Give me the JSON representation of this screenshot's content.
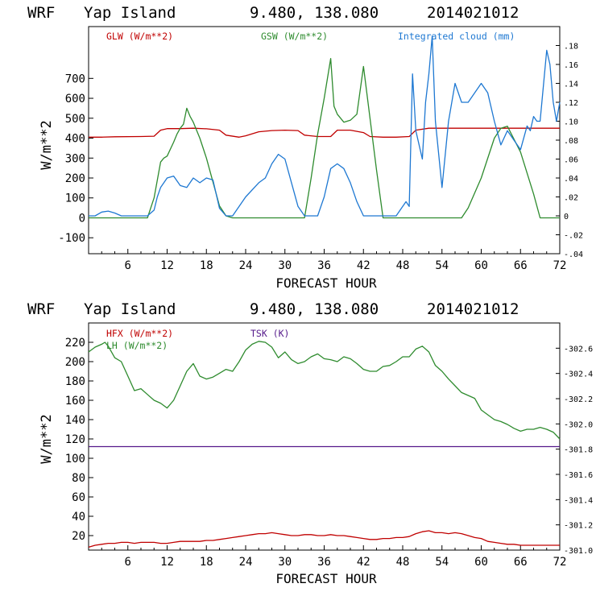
{
  "colors": {
    "glw": "#c00000",
    "gsw": "#2e8b2e",
    "cloud": "#1e78d2",
    "hfx": "#c00000",
    "lh": "#2e8b2e",
    "tsk": "#551a8b",
    "frame": "#000000"
  },
  "chart_data": [
    {
      "type": "line",
      "title": {
        "model": "WRF",
        "location": "Yap Island",
        "coords": "9.480, 138.080",
        "date": "2014021012"
      },
      "xlabel": "FORECAST HOUR",
      "ylabel": "W/m**2",
      "xlim": [
        0,
        72
      ],
      "xticks": [
        "6",
        "12",
        "18",
        "24",
        "30",
        "36",
        "42",
        "48",
        "54",
        "60",
        "66",
        "72"
      ],
      "ylim": [
        -180,
        960
      ],
      "yticks": [
        "-100",
        "0",
        "100",
        "200",
        "300",
        "400",
        "500",
        "600",
        "700"
      ],
      "y2lim": [
        -0.04,
        0.2
      ],
      "y2ticks": [
        "-.04",
        "-.02",
        "0",
        ".02",
        ".04",
        ".06",
        ".08",
        ".10",
        ".12",
        ".14",
        ".16",
        ".18"
      ],
      "legend": [
        "GLW (W/m**2)",
        "GSW (W/m**2)",
        "Integrated cloud (mm)"
      ],
      "series": [
        {
          "name": "GLW (W/m**2)",
          "axis": "left",
          "x": [
            0,
            2,
            4,
            8,
            10,
            11,
            12,
            14,
            16,
            18,
            20,
            21,
            23,
            24,
            26,
            28,
            30,
            32,
            33,
            35,
            37,
            38,
            40,
            42,
            43,
            45,
            47,
            49,
            50,
            52,
            56,
            60,
            64,
            68,
            72
          ],
          "y": [
            405,
            405,
            407,
            408,
            410,
            440,
            448,
            448,
            450,
            447,
            440,
            415,
            405,
            412,
            432,
            438,
            440,
            438,
            415,
            408,
            408,
            440,
            440,
            428,
            408,
            405,
            405,
            408,
            440,
            450,
            450,
            450,
            450,
            450,
            450
          ]
        },
        {
          "name": "GSW (W/m**2)",
          "axis": "left",
          "x": [
            0,
            9,
            10,
            11,
            11.5,
            12,
            13,
            13.5,
            14,
            14.5,
            15,
            15.5,
            16,
            17,
            18,
            19,
            20,
            21,
            22,
            33,
            34,
            35,
            36,
            37,
            37.5,
            38,
            39,
            40,
            41,
            42,
            43,
            44,
            45,
            57,
            58,
            60,
            62,
            63,
            64,
            66,
            68,
            69,
            72
          ],
          "y": [
            0,
            0,
            100,
            280,
            300,
            310,
            380,
            420,
            450,
            470,
            550,
            510,
            480,
            400,
            300,
            180,
            60,
            10,
            0,
            0,
            200,
            420,
            600,
            800,
            560,
            520,
            480,
            490,
            520,
            760,
            500,
            240,
            0,
            0,
            50,
            200,
            400,
            450,
            460,
            330,
            120,
            0,
            0
          ]
        },
        {
          "name": "Integrated cloud (mm)",
          "axis": "right",
          "x": [
            0,
            1,
            2,
            3,
            4,
            5,
            9,
            10,
            10.5,
            11,
            12,
            13,
            14,
            15,
            16,
            17,
            18,
            19,
            20,
            21,
            22,
            24,
            26,
            27,
            28,
            29,
            30,
            31,
            32,
            33,
            34,
            35,
            36,
            37,
            38,
            39,
            40,
            41,
            42,
            43,
            44,
            45,
            47,
            48,
            48.5,
            49,
            49.5,
            50,
            51,
            51.5,
            52,
            52.5,
            53,
            54,
            55,
            56,
            57,
            58,
            59,
            60,
            61,
            62,
            63,
            64,
            65,
            66,
            67,
            67.5,
            68,
            68.5,
            69,
            70,
            70.5,
            71,
            71.5,
            72
          ],
          "y": [
            0,
            0,
            0.004,
            0.005,
            0.003,
            0,
            0,
            0.006,
            0.02,
            0.03,
            0.04,
            0.042,
            0.032,
            0.03,
            0.04,
            0.035,
            0.04,
            0.038,
            0.008,
            0,
            0,
            0.02,
            0.035,
            0.04,
            0.055,
            0.065,
            0.06,
            0.035,
            0.01,
            0,
            0,
            0,
            0.02,
            0.05,
            0.055,
            0.05,
            0.035,
            0.015,
            0,
            0,
            0,
            0,
            0,
            0.01,
            0.015,
            0.01,
            0.15,
            0.09,
            0.06,
            0.12,
            0.15,
            0.19,
            0.1,
            0.03,
            0.1,
            0.14,
            0.12,
            0.12,
            0.13,
            0.14,
            0.13,
            0.1,
            0.075,
            0.09,
            0.08,
            0.07,
            0.095,
            0.09,
            0.105,
            0.1,
            0.1,
            0.175,
            0.16,
            0.12,
            0.1,
            0.12
          ]
        }
      ]
    },
    {
      "type": "line",
      "title": {
        "model": "WRF",
        "location": "Yap Island",
        "coords": "9.480, 138.080",
        "date": "2014021012"
      },
      "xlabel": "FORECAST HOUR",
      "ylabel": "W/m**2",
      "xlim": [
        0,
        72
      ],
      "xticks": [
        "6",
        "12",
        "18",
        "24",
        "30",
        "36",
        "42",
        "48",
        "54",
        "60",
        "66",
        "72"
      ],
      "ylim": [
        5,
        240
      ],
      "yticks": [
        "20",
        "40",
        "60",
        "80",
        "100",
        "120",
        "140",
        "160",
        "180",
        "200",
        "220"
      ],
      "y2lim": [
        301.0,
        302.8
      ],
      "y2ticks": [
        "-301.0",
        "-301.2",
        "-301.4",
        "-301.6",
        "-301.8",
        "-302.0",
        "-302.2",
        "-302.4",
        "-302.6"
      ],
      "legend": [
        "HFX (W/m**2)",
        "LH  (W/m**2)",
        "TSK (K)"
      ],
      "series": [
        {
          "name": "HFX (W/m**2)",
          "axis": "left",
          "x": [
            0,
            1,
            2,
            3,
            4,
            5,
            6,
            7,
            8,
            9,
            10,
            11,
            12,
            13,
            14,
            15,
            16,
            17,
            18,
            19,
            20,
            21,
            22,
            23,
            24,
            25,
            26,
            27,
            28,
            29,
            30,
            31,
            32,
            33,
            34,
            35,
            36,
            37,
            38,
            39,
            40,
            41,
            42,
            43,
            44,
            45,
            46,
            47,
            48,
            49,
            50,
            51,
            52,
            53,
            54,
            55,
            56,
            57,
            58,
            59,
            60,
            61,
            62,
            63,
            64,
            65,
            66,
            67,
            68,
            69,
            70,
            71,
            72
          ],
          "y": [
            8,
            10,
            11,
            12,
            12,
            13,
            13,
            12,
            13,
            13,
            13,
            12,
            12,
            13,
            14,
            14,
            14,
            14,
            15,
            15,
            16,
            17,
            18,
            19,
            20,
            21,
            22,
            22,
            23,
            22,
            21,
            20,
            20,
            21,
            21,
            20,
            20,
            21,
            20,
            20,
            19,
            18,
            17,
            16,
            16,
            17,
            17,
            18,
            18,
            19,
            22,
            24,
            25,
            23,
            23,
            22,
            23,
            22,
            20,
            18,
            17,
            14,
            13,
            12,
            11,
            11,
            10,
            10,
            10,
            10,
            10,
            10,
            10
          ]
        },
        {
          "name": "LH  (W/m**2)",
          "axis": "left",
          "x": [
            0,
            1,
            2,
            2.5,
            3,
            4,
            5,
            6,
            7,
            8,
            9,
            10,
            11,
            12,
            13,
            14,
            15,
            16,
            17,
            18,
            19,
            20,
            21,
            22,
            23,
            24,
            25,
            26,
            27,
            28,
            29,
            30,
            31,
            32,
            33,
            34,
            35,
            36,
            37,
            38,
            39,
            40,
            41,
            42,
            43,
            44,
            45,
            46,
            47,
            48,
            49,
            50,
            51,
            52,
            53,
            54,
            55,
            56,
            57,
            58,
            59,
            60,
            61,
            62,
            63,
            64,
            65,
            66,
            67,
            68,
            69,
            70,
            71,
            72
          ],
          "y": [
            210,
            215,
            218,
            220,
            216,
            204,
            200,
            185,
            170,
            172,
            166,
            160,
            157,
            152,
            160,
            175,
            190,
            198,
            185,
            182,
            184,
            188,
            192,
            190,
            200,
            212,
            218,
            221,
            220,
            215,
            204,
            210,
            202,
            198,
            200,
            205,
            208,
            203,
            202,
            200,
            205,
            203,
            198,
            192,
            190,
            190,
            195,
            196,
            200,
            205,
            205,
            213,
            216,
            210,
            196,
            190,
            182,
            175,
            168,
            165,
            162,
            150,
            145,
            140,
            138,
            135,
            131,
            128,
            130,
            130,
            132,
            130,
            127,
            120
          ]
        },
        {
          "name": "TSK (K)",
          "axis": "right",
          "x": [
            0,
            12,
            24,
            36,
            48,
            60,
            72
          ],
          "y": [
            301.82,
            301.82,
            301.82,
            301.82,
            301.82,
            301.82,
            301.82
          ]
        }
      ]
    }
  ]
}
